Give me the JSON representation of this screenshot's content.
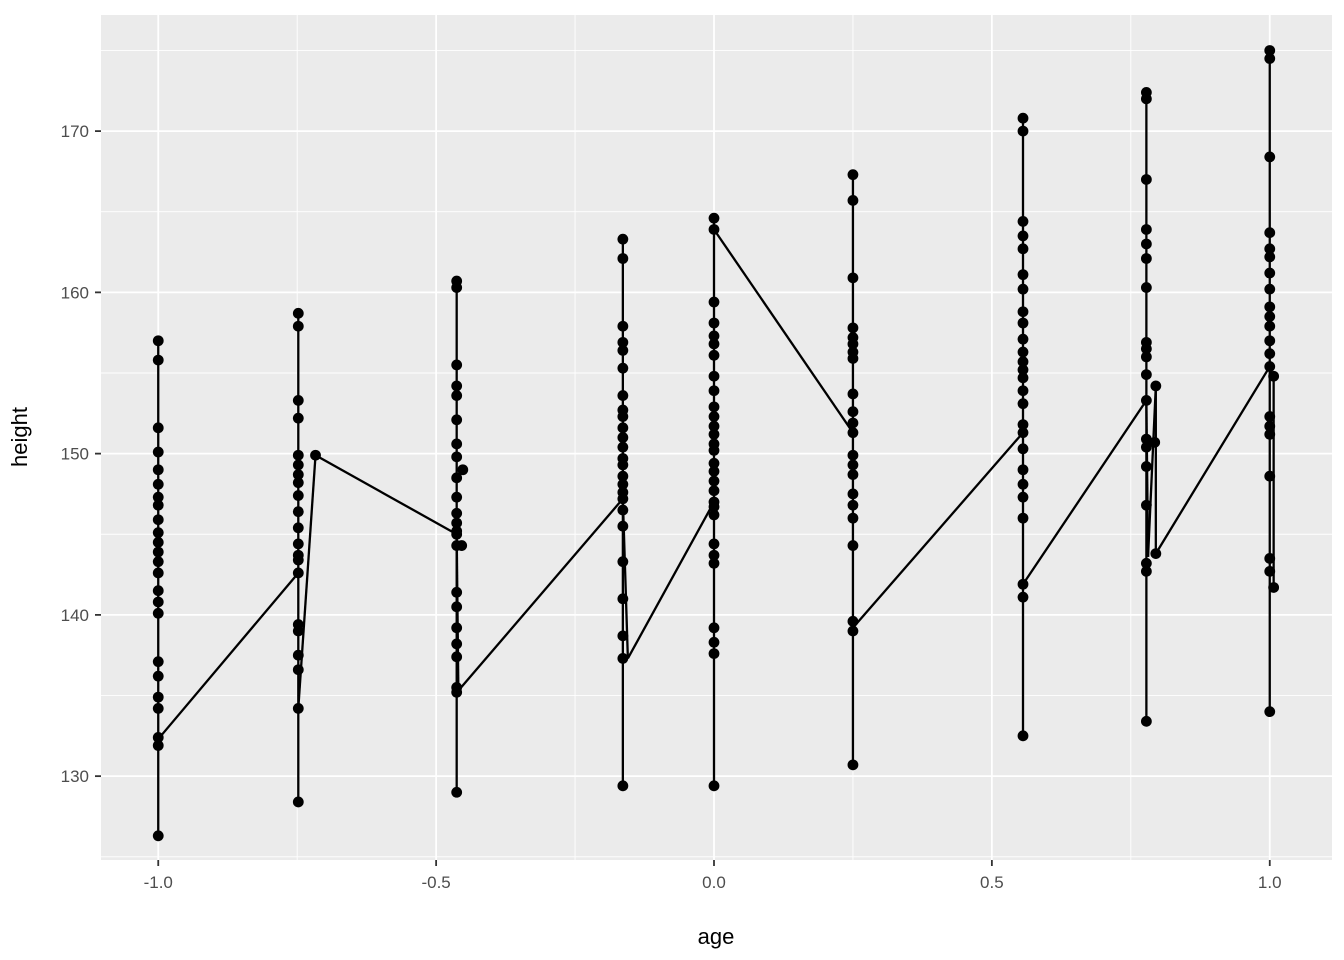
{
  "chart_data": {
    "type": "scatter",
    "title": "",
    "xlabel": "age",
    "ylabel": "height",
    "xlim": [
      -1.103,
      1.112
    ],
    "ylim": [
      124.8,
      177.2
    ],
    "x_ticks": [
      -1.0,
      -0.5,
      0.0,
      0.5,
      1.0
    ],
    "x_tick_labels": [
      "-1.0",
      "-0.5",
      "0.0",
      "0.5",
      "1.0"
    ],
    "x_minor_ticks": [
      -0.75,
      -0.25,
      0.25,
      0.75
    ],
    "y_ticks": [
      130,
      140,
      150,
      160,
      170
    ],
    "y_tick_labels": [
      "130",
      "140",
      "150",
      "160",
      "170"
    ],
    "y_minor_ticks": [
      125,
      135,
      145,
      155,
      165,
      175
    ],
    "grid": true,
    "legend": false,
    "colors": {
      "background": "#FFFFFF",
      "panel": "#EBEBEB",
      "grid_major": "#FFFFFF",
      "grid_minor": "#FFFFFF",
      "point": "#000000",
      "line": "#000000",
      "tick_label": "#4D4D4D",
      "tick_mark": "#333333",
      "axis_title": "#000000"
    },
    "columns": [
      {
        "age": -1.0,
        "heights": [
          157.0,
          155.8,
          151.6,
          150.1,
          149.0,
          148.1,
          147.3,
          146.8,
          145.9,
          145.1,
          144.5,
          143.9,
          143.3,
          142.6,
          141.5,
          140.8,
          140.1,
          137.1,
          136.2,
          134.9,
          134.2,
          132.4,
          131.9,
          126.3
        ]
      },
      {
        "age": -0.748,
        "heights": [
          158.7,
          157.9,
          153.3,
          152.2,
          149.9,
          149.3,
          148.7,
          148.2,
          147.4,
          146.4,
          145.4,
          144.4,
          143.7,
          143.4,
          142.6,
          139.4,
          139.0,
          137.5,
          136.6,
          134.2,
          128.4
        ]
      },
      {
        "age": -0.463,
        "heights": [
          160.7,
          160.3,
          155.5,
          154.2,
          153.6,
          152.1,
          150.6,
          149.8,
          148.5,
          147.3,
          146.3,
          145.7,
          145.2,
          145.0,
          144.3,
          141.4,
          140.5,
          139.2,
          138.2,
          137.4,
          135.5,
          135.2,
          129.0
        ]
      },
      {
        "age": -0.164,
        "heights": [
          163.3,
          162.1,
          157.9,
          156.9,
          156.4,
          155.3,
          153.6,
          152.7,
          152.3,
          151.6,
          151.0,
          150.4,
          149.7,
          149.3,
          148.6,
          148.1,
          147.6,
          147.2,
          146.5,
          145.5,
          143.3,
          141.0,
          138.7,
          137.3,
          129.4
        ]
      },
      {
        "age": 0.0,
        "heights": [
          164.6,
          163.9,
          159.4,
          158.1,
          157.3,
          156.8,
          156.1,
          154.8,
          153.9,
          152.9,
          152.3,
          151.7,
          151.2,
          150.6,
          150.2,
          149.4,
          148.9,
          148.3,
          147.7,
          147.0,
          146.7,
          146.2,
          144.4,
          143.7,
          143.2,
          139.2,
          138.3,
          137.6,
          129.4
        ]
      },
      {
        "age": 0.25,
        "heights": [
          167.3,
          165.7,
          160.9,
          157.8,
          157.2,
          156.8,
          156.3,
          155.9,
          153.7,
          152.6,
          151.9,
          151.3,
          149.9,
          149.3,
          148.7,
          147.5,
          146.8,
          146.0,
          144.3,
          139.6,
          139.0,
          130.7
        ]
      },
      {
        "age": 0.556,
        "heights": [
          170.8,
          170.0,
          164.4,
          163.5,
          162.7,
          161.1,
          160.2,
          158.8,
          158.1,
          157.1,
          156.3,
          155.7,
          155.2,
          154.7,
          153.9,
          153.1,
          151.8,
          151.3,
          150.3,
          149.0,
          148.1,
          147.3,
          146.0,
          141.9,
          141.1,
          132.5
        ]
      },
      {
        "age": 0.778,
        "heights": [
          172.4,
          172.0,
          167.0,
          163.9,
          163.0,
          162.1,
          160.3,
          156.9,
          156.5,
          156.0,
          154.9,
          153.3,
          150.9,
          150.4,
          149.2,
          146.8,
          143.2,
          142.7,
          133.4
        ]
      },
      {
        "age": 1.0,
        "heights": [
          175.0,
          174.5,
          168.4,
          163.7,
          162.7,
          162.2,
          161.2,
          160.2,
          159.1,
          158.5,
          157.9,
          157.0,
          156.2,
          155.4,
          152.3,
          151.7,
          151.2,
          148.6,
          143.5,
          142.7,
          134.0
        ]
      }
    ],
    "extra_points": [
      {
        "age": -0.717,
        "height": 149.9
      },
      {
        "age": -0.452,
        "height": 149.0
      },
      {
        "age": -0.454,
        "height": 144.3
      },
      {
        "age": 0.795,
        "height": 154.2
      },
      {
        "age": 0.793,
        "height": 150.7
      },
      {
        "age": 0.795,
        "height": 143.8
      },
      {
        "age": 1.007,
        "height": 154.8
      },
      {
        "age": 1.007,
        "height": 141.7
      }
    ],
    "line_segments": [
      [
        [
          -1.0,
          132.3
        ],
        [
          -0.748,
          142.6
        ]
      ],
      [
        [
          -0.748,
          134.2
        ],
        [
          -0.717,
          149.9
        ]
      ],
      [
        [
          -0.717,
          149.9
        ],
        [
          -0.463,
          145.0
        ]
      ],
      [
        [
          -0.463,
          145.0
        ],
        [
          -0.46,
          135.3
        ]
      ],
      [
        [
          -0.46,
          135.3
        ],
        [
          -0.164,
          147.2
        ]
      ],
      [
        [
          -0.164,
          147.2
        ],
        [
          -0.155,
          137.3
        ]
      ],
      [
        [
          -0.155,
          137.3
        ],
        [
          0.0,
          147.0
        ]
      ],
      [
        [
          0.0,
          163.9
        ],
        [
          0.25,
          151.3
        ]
      ],
      [
        [
          0.25,
          139.2
        ],
        [
          0.556,
          151.3
        ]
      ],
      [
        [
          0.556,
          141.9
        ],
        [
          0.778,
          153.3
        ]
      ],
      [
        [
          0.778,
          153.3
        ],
        [
          0.781,
          143.6
        ]
      ],
      [
        [
          0.781,
          143.6
        ],
        [
          0.795,
          154.2
        ]
      ],
      [
        [
          0.795,
          154.2
        ],
        [
          0.795,
          143.8
        ]
      ],
      [
        [
          0.795,
          143.8
        ],
        [
          1.0,
          155.4
        ]
      ],
      [
        [
          1.007,
          154.8
        ],
        [
          1.007,
          141.7
        ]
      ]
    ]
  }
}
